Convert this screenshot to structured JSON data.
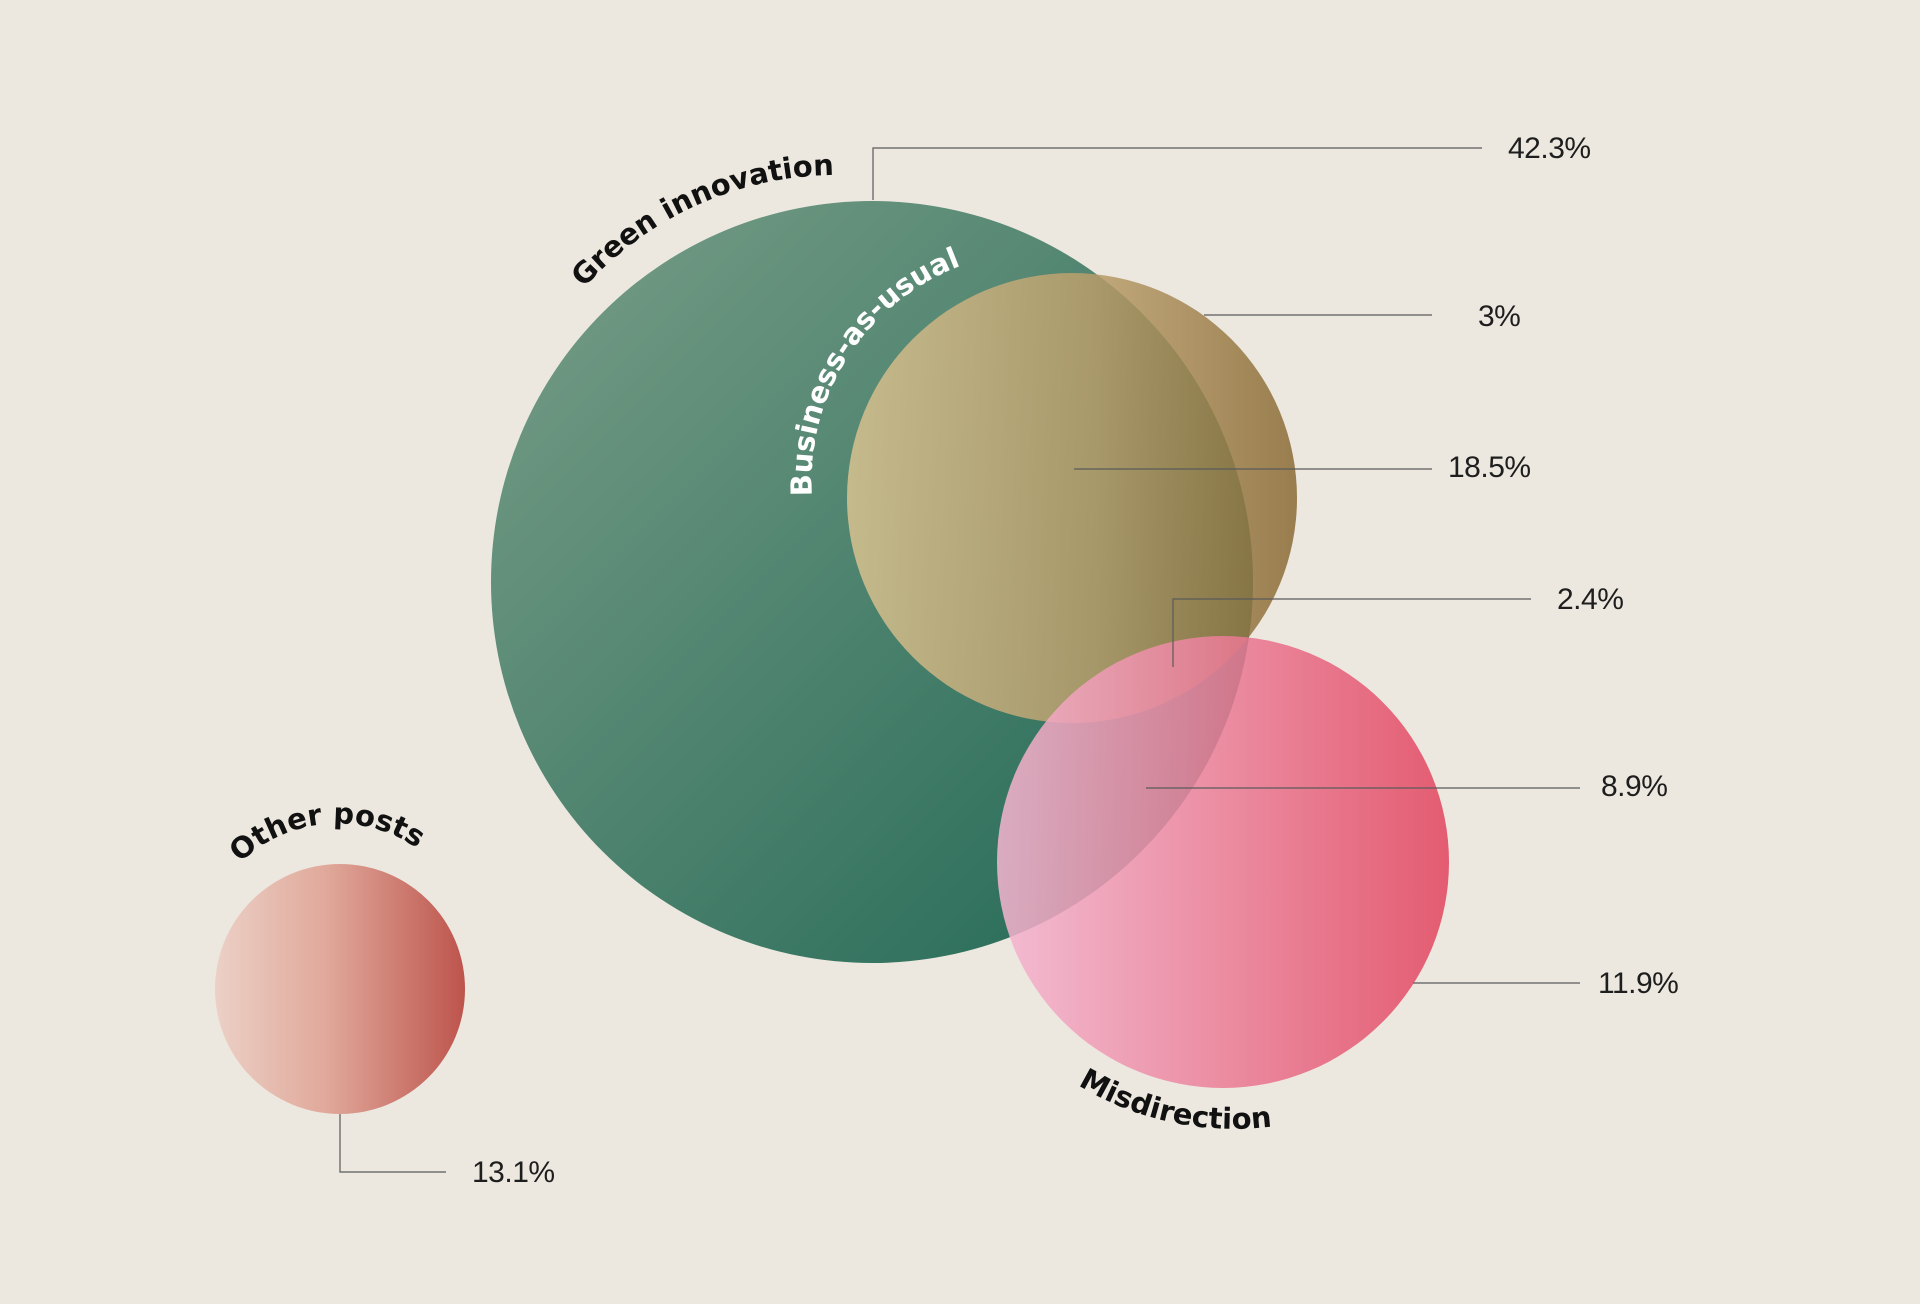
{
  "sets": {
    "green_innovation": {
      "label": "Green innovation",
      "color_start": "#7a9e88",
      "color_end": "#2a6b58"
    },
    "business_as_usual": {
      "label": "Business-as-usual",
      "color_start": "#c4bc98",
      "color_end": "#9e7c3c"
    },
    "misdirection": {
      "label": "Misdirection",
      "color_start": "#f2b2cc",
      "color_end": "#e24a68"
    },
    "other_posts": {
      "label": "Other posts",
      "color_start": "#eccfc4",
      "color_end": "#c0564f"
    }
  },
  "regions": {
    "green_only": "42.3%",
    "business_only": "3%",
    "green_business": "18.5%",
    "all_three": "2.4%",
    "green_misdirection": "8.9%",
    "misdirection_only": "11.9%",
    "other_posts": "13.1%"
  },
  "background": "#ece8df"
}
